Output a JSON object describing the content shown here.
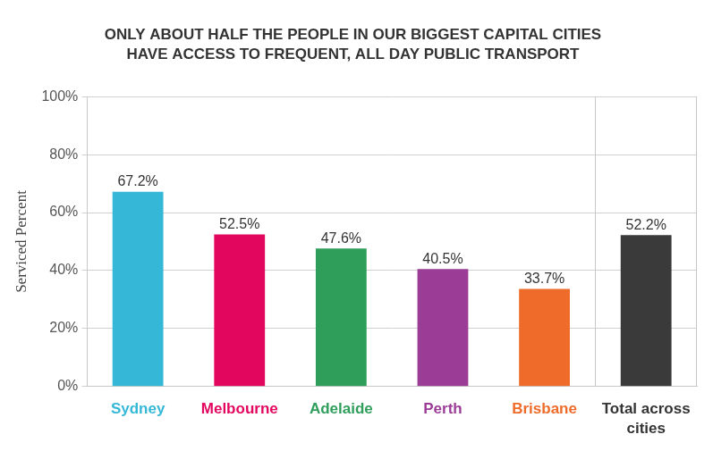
{
  "chart_data": {
    "type": "bar",
    "title": [
      "ONLY ABOUT HALF THE PEOPLE IN OUR BIGGEST CAPITAL CITIES",
      "HAVE ACCESS TO FREQUENT, ALL DAY PUBLIC TRANSPORT"
    ],
    "y_label": "Serviced Percent",
    "categories": [
      "Sydney",
      "Melbourne",
      "Adelaide",
      "Perth",
      "Brisbane",
      "Total across cities"
    ],
    "values": [
      67.2,
      52.5,
      47.6,
      40.5,
      33.7,
      52.2
    ],
    "value_labels": [
      "67.2%",
      "52.5%",
      "47.6%",
      "40.5%",
      "33.7%",
      "52.2%"
    ],
    "colors": [
      "#35b8d8",
      "#e3065f",
      "#2e9e5a",
      "#9b3d97",
      "#ee6b2a",
      "#3a3a3a"
    ],
    "ylim": [
      0,
      100
    ],
    "yticks": [
      {
        "value": 0,
        "label": "0%"
      },
      {
        "value": 20,
        "label": "20%"
      },
      {
        "value": 40,
        "label": "40%"
      },
      {
        "value": 60,
        "label": "60%"
      },
      {
        "value": 80,
        "label": "80%"
      },
      {
        "value": 100,
        "label": "100%"
      }
    ],
    "grid": true,
    "data_labels": true
  }
}
